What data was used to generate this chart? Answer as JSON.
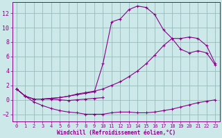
{
  "xlabel": "Windchill (Refroidissement éolien,°C)",
  "bg_color": "#cce8e8",
  "line_color": "#880088",
  "grid_color": "#99bbbb",
  "xlim": [
    -0.5,
    23.5
  ],
  "ylim": [
    -3.0,
    13.5
  ],
  "xticks": [
    0,
    1,
    2,
    3,
    4,
    5,
    6,
    7,
    8,
    9,
    10,
    11,
    12,
    13,
    14,
    15,
    16,
    17,
    18,
    19,
    20,
    21,
    22,
    23
  ],
  "yticks": [
    -2,
    0,
    2,
    4,
    6,
    8,
    10,
    12
  ],
  "line1_x": [
    0,
    1,
    2,
    3,
    4,
    5,
    6,
    7,
    8,
    9,
    10
  ],
  "line1_y": [
    1.5,
    0.5,
    0.1,
    0.1,
    0.1,
    0.0,
    -0.1,
    0.0,
    0.1,
    0.2,
    0.3
  ],
  "line2_x": [
    0,
    1,
    2,
    3,
    4,
    5,
    6,
    7,
    8,
    9,
    10,
    11,
    12,
    13,
    14,
    15,
    16,
    17,
    18,
    19,
    20,
    21,
    22,
    23
  ],
  "line2_y": [
    1.5,
    0.5,
    -0.3,
    -0.8,
    -1.2,
    -1.5,
    -1.7,
    -1.8,
    -2.0,
    -2.0,
    -2.0,
    -1.8,
    -1.7,
    -1.7,
    -1.8,
    -1.8,
    -1.7,
    -1.5,
    -1.3,
    -1.0,
    -0.7,
    -0.4,
    -0.2,
    0.0
  ],
  "line3_x": [
    0,
    1,
    2,
    3,
    4,
    5,
    6,
    7,
    8,
    9,
    10,
    11,
    12,
    13,
    14,
    15,
    16,
    17,
    18,
    19,
    20,
    21,
    22,
    23
  ],
  "line3_y": [
    1.5,
    0.5,
    0.1,
    0.1,
    0.2,
    0.3,
    0.5,
    0.7,
    0.9,
    1.1,
    5.0,
    10.8,
    11.2,
    12.5,
    13.0,
    12.8,
    11.8,
    9.7,
    8.5,
    7.0,
    6.5,
    6.8,
    6.5,
    4.8
  ],
  "line4_x": [
    0,
    1,
    2,
    3,
    4,
    5,
    6,
    7,
    8,
    9,
    10,
    11,
    12,
    13,
    14,
    15,
    16,
    17,
    18,
    19,
    20,
    21,
    22,
    23
  ],
  "line4_y": [
    1.5,
    0.5,
    0.1,
    0.1,
    0.2,
    0.3,
    0.5,
    0.8,
    1.0,
    1.2,
    1.5,
    2.0,
    2.5,
    3.2,
    4.0,
    5.0,
    6.2,
    7.5,
    8.5,
    8.5,
    8.7,
    8.5,
    7.5,
    5.0
  ]
}
